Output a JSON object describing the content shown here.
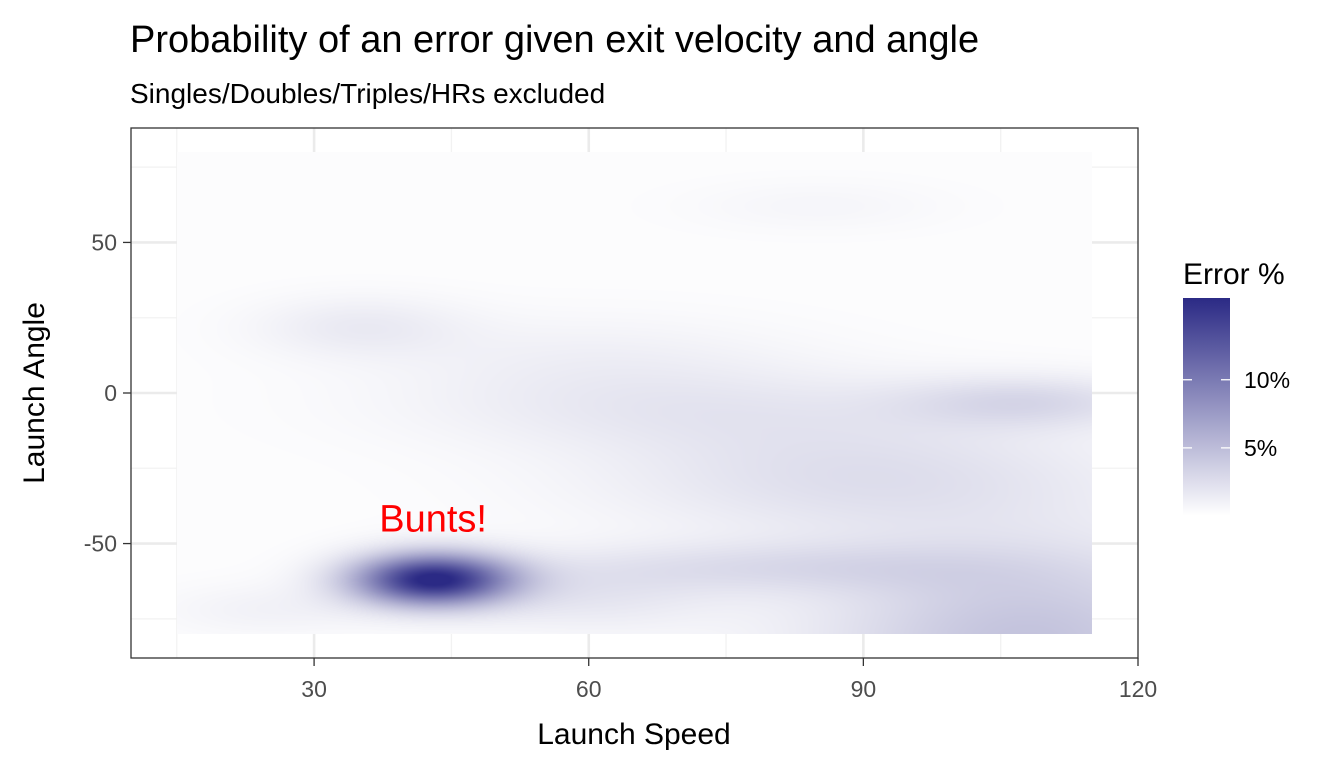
{
  "chart_data": {
    "type": "heatmap",
    "title": "Probability of an error given exit velocity and angle",
    "subtitle": "Singles/Doubles/Triples/HRs excluded",
    "xlabel": "Launch Speed",
    "ylabel": "Launch Angle",
    "xlim": [
      10,
      120
    ],
    "ylim": [
      -88,
      88
    ],
    "data_extent": {
      "x": [
        15,
        115
      ],
      "y": [
        -80,
        80
      ]
    },
    "x_ticks": [
      {
        "value": 30,
        "label": "30"
      },
      {
        "value": 60,
        "label": "60"
      },
      {
        "value": 90,
        "label": "90"
      },
      {
        "value": 120,
        "label": "120"
      }
    ],
    "y_ticks": [
      {
        "value": 50,
        "label": "50"
      },
      {
        "value": 0,
        "label": "0"
      },
      {
        "value": -50,
        "label": "-50"
      }
    ],
    "grid": true,
    "legend": {
      "title": "Error %",
      "position": "right",
      "range": [
        0,
        16
      ],
      "color_low": "#ffffff",
      "color_high": "#2b2a85",
      "ticks": [
        {
          "value": 5,
          "label": "5%"
        },
        {
          "value": 10,
          "label": "10%"
        }
      ]
    },
    "field": {
      "base": 0.2,
      "components": [
        {
          "x": 43,
          "y": -62,
          "sx": 6,
          "sy": 6,
          "amp": 16
        },
        {
          "x": 108,
          "y": -82,
          "sx": 16,
          "sy": 22,
          "amp": 4.3
        },
        {
          "x": 108,
          "y": -3,
          "sx": 10,
          "sy": 6,
          "amp": 2.5
        },
        {
          "x": 80,
          "y": -58,
          "sx": 18,
          "sy": 6,
          "amp": 2
        },
        {
          "x": 90,
          "y": -28,
          "sx": 20,
          "sy": 14,
          "amp": 2.2
        },
        {
          "x": 70,
          "y": -5,
          "sx": 20,
          "sy": 10,
          "amp": 1.4
        },
        {
          "x": 35,
          "y": 22,
          "sx": 8,
          "sy": 7,
          "amp": 1.3
        },
        {
          "x": 60,
          "y": 12,
          "sx": 16,
          "sy": 10,
          "amp": 0.8
        },
        {
          "x": 85,
          "y": 62,
          "sx": 10,
          "sy": 6,
          "amp": 0.5
        },
        {
          "x": 25,
          "y": -72,
          "sx": 8,
          "sy": 6,
          "amp": 0.8
        },
        {
          "x": 60,
          "y": -68,
          "sx": 10,
          "sy": 8,
          "amp": 1.5
        }
      ]
    },
    "annotations": [
      {
        "text": "Bunts!",
        "x": 43,
        "y": -46,
        "color": "#ff0000"
      }
    ]
  }
}
